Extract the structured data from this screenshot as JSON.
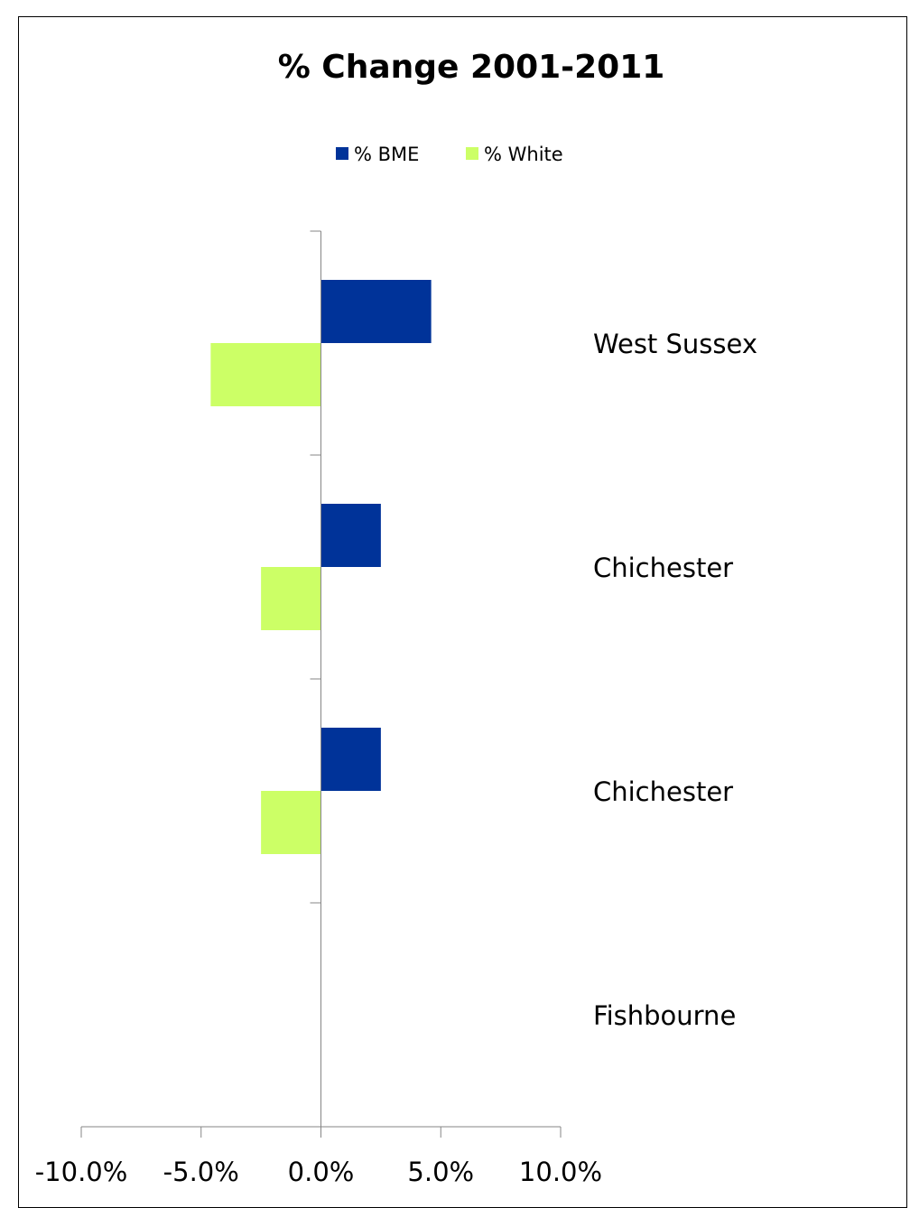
{
  "chart_data": {
    "type": "bar",
    "orientation": "horizontal",
    "title": "% Change 2001-2011",
    "categories": [
      "West Sussex",
      "Chichester",
      "Chichester",
      "Fishbourne"
    ],
    "series": [
      {
        "name": "% BME",
        "color": "#003399",
        "values": [
          4.6,
          2.5,
          2.5,
          0.0
        ]
      },
      {
        "name": "% White",
        "color": "#CCFF66",
        "values": [
          -4.6,
          -2.5,
          -2.5,
          0.0
        ]
      }
    ],
    "xlim": [
      -10.0,
      10.0
    ],
    "xticks": [
      -10.0,
      -5.0,
      0.0,
      5.0,
      10.0
    ],
    "tick_labels": [
      "-10.0%",
      "-5.0%",
      "0.0%",
      "5.0%",
      "10.0%"
    ],
    "legend_position": "top",
    "grid": false
  }
}
